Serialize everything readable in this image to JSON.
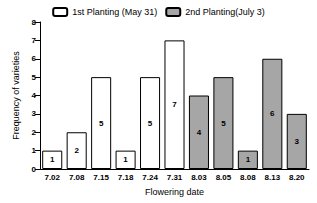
{
  "chart_data": {
    "type": "bar",
    "x_label": "Flowering date",
    "y_label": "Frequency of varieties",
    "categories": [
      "7.02",
      "7.08",
      "7.15",
      "7.18",
      "7.24",
      "7.31",
      "8.03",
      "8.05",
      "8.08",
      "8.13",
      "8.20"
    ],
    "series": [
      {
        "name": "1st Planting (May 31)",
        "color": "#ffffff",
        "values": [
          1,
          2,
          5,
          1,
          5,
          7,
          null,
          null,
          null,
          null,
          null
        ]
      },
      {
        "name": "2nd Planting(July 3)",
        "color": "#a6a6a6",
        "values": [
          null,
          null,
          null,
          null,
          null,
          null,
          4,
          5,
          1,
          6,
          3
        ]
      }
    ],
    "ylim": [
      0,
      8
    ],
    "yticks": [
      0,
      1,
      2,
      3,
      4,
      5,
      6,
      7,
      8
    ],
    "grid": false,
    "legend": "top",
    "data_labels": true,
    "stacked": true
  }
}
